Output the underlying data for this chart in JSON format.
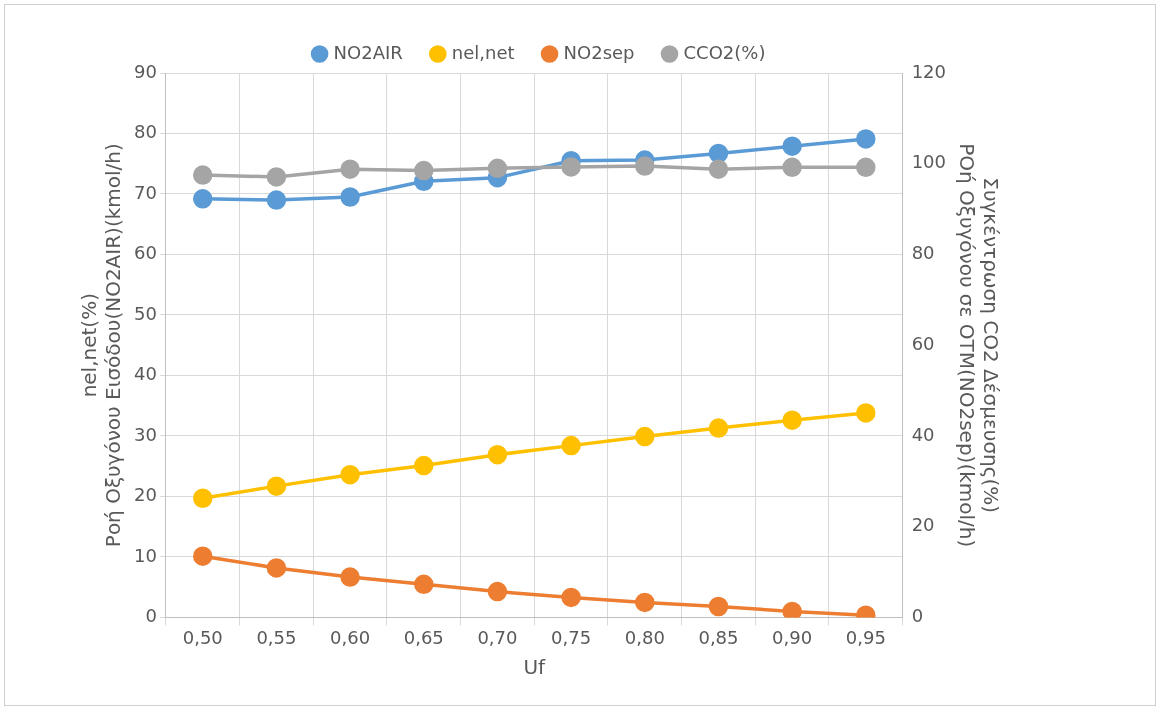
{
  "chart_data": {
    "type": "line",
    "xlabel": "Uf",
    "ylabel": "nel,net(%)\nΡοή Οξυγόνου Εισόδου(NO2AIR)(kmol/h)",
    "y2label": "Συγκέντρωση CO2 Δέσμευσης(%)\nΡΟή Οξυγόνου σε ΟΤΜ(NO2sep)(kmol/h)",
    "categories": [
      "0,50",
      "0,55",
      "0,60",
      "0,65",
      "0,70",
      "0,75",
      "0,80",
      "0,85",
      "0,90",
      "0,95"
    ],
    "series": [
      {
        "name": "NO2AIR",
        "color": "#5b9bd5",
        "values": [
          69.2,
          69.0,
          69.5,
          72.1,
          72.7,
          75.5,
          75.6,
          76.7,
          77.9,
          79.1
        ]
      },
      {
        "name": "nel,net",
        "color": "#ffc000",
        "values": [
          19.7,
          21.7,
          23.6,
          25.1,
          26.9,
          28.4,
          29.9,
          31.3,
          32.6,
          33.8
        ]
      },
      {
        "name": "NO2sep",
        "color": "#ed7d31",
        "axis": "y2",
        "values": [
          13.5,
          10.9,
          8.9,
          7.3,
          5.7,
          4.4,
          3.3,
          2.4,
          1.3,
          0.5
        ]
      },
      {
        "name": "CCO2(%)",
        "color": "#a5a5a5",
        "axis": "y2",
        "values": [
          97.5,
          97.1,
          98.8,
          98.5,
          99.0,
          99.3,
          99.5,
          98.8,
          99.2,
          99.2
        ]
      }
    ],
    "ylim": [
      0,
      90
    ],
    "yticks": [
      0,
      10,
      20,
      30,
      40,
      50,
      60,
      70,
      80,
      90
    ],
    "y2lim": [
      0,
      120
    ],
    "y2ticks": [
      0,
      20,
      40,
      60,
      80,
      100,
      120
    ],
    "grid": true,
    "legend": "top",
    "marker": "circle",
    "line_style": "solid"
  }
}
